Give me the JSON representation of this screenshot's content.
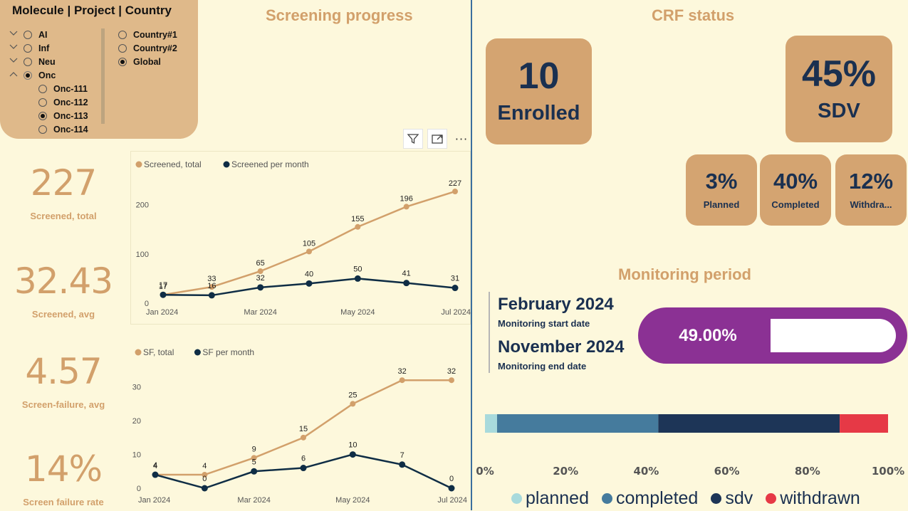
{
  "slicer": {
    "title": "Molecule | Project | Country",
    "tree": [
      {
        "label": "AI",
        "chevron": "down",
        "selected": false,
        "level": 0
      },
      {
        "label": "Inf",
        "chevron": "down",
        "selected": false,
        "level": 0
      },
      {
        "label": "Neu",
        "chevron": "down",
        "selected": false,
        "level": 0
      },
      {
        "label": "Onc",
        "chevron": "up",
        "selected": "partial",
        "level": 0
      },
      {
        "label": "Onc-111",
        "selected": false,
        "level": 1
      },
      {
        "label": "Onc-112",
        "selected": false,
        "level": 1
      },
      {
        "label": "Onc-113",
        "selected": true,
        "level": 1
      },
      {
        "label": "Onc-114",
        "selected": false,
        "level": 1
      }
    ],
    "countries": [
      {
        "label": "Country#1",
        "selected": false
      },
      {
        "label": "Country#2",
        "selected": false
      },
      {
        "label": "Global",
        "selected": true
      }
    ]
  },
  "headings": {
    "screening": "Screening progress",
    "crf": "CRF status",
    "monitoring": "Monitoring period"
  },
  "kpis": [
    {
      "value": "227",
      "label": "Screened, total"
    },
    {
      "value": "32.43",
      "label": "Screened, avg"
    },
    {
      "value": "4.57",
      "label": "Screen-failure, avg"
    },
    {
      "value": "14%",
      "label": "Screen failure rate"
    }
  ],
  "toolbar": {
    "filter": "filter-icon",
    "focus": "focus-mode-icon",
    "more": "more-options-icon"
  },
  "chart_data": [
    {
      "type": "line",
      "x": [
        "Jan 2024",
        "Feb 2024",
        "Mar 2024",
        "Apr 2024",
        "May 2024",
        "Jun 2024",
        "Jul 2024"
      ],
      "x_tick_labels": [
        "Jan 2024",
        "Mar 2024",
        "May 2024",
        "Jul 2024"
      ],
      "series": [
        {
          "name": "Screened, total",
          "values": [
            17,
            33,
            65,
            105,
            155,
            196,
            227
          ],
          "color": "#d2a06b"
        },
        {
          "name": "Screened per month",
          "values": [
            17,
            16,
            32,
            40,
            50,
            41,
            31
          ],
          "color": "#0f2d45"
        }
      ],
      "ylim": [
        0,
        240
      ],
      "yticks": [
        0,
        100,
        200
      ],
      "legend": "top-left",
      "grid": false
    },
    {
      "type": "line",
      "x": [
        "Jan 2024",
        "Feb 2024",
        "Mar 2024",
        "Apr 2024",
        "May 2024",
        "Jun 2024",
        "Jul 2024"
      ],
      "x_tick_labels": [
        "Jan 2024",
        "Mar 2024",
        "May 2024",
        "Jul 2024"
      ],
      "series": [
        {
          "name": "SF, total",
          "values": [
            4,
            4,
            9,
            15,
            25,
            32,
            32
          ],
          "color": "#d2a06b"
        },
        {
          "name": "SF per month",
          "values": [
            4,
            0,
            5,
            6,
            10,
            7,
            0
          ],
          "color": "#0f2d45"
        }
      ],
      "ylim": [
        0,
        35
      ],
      "yticks": [
        0,
        10,
        20,
        30
      ],
      "legend": "top-left",
      "grid": false
    },
    {
      "type": "bar",
      "orientation": "horizontal-stacked",
      "series": [
        {
          "name": "planned",
          "values": [
            3
          ],
          "color": "#a8dadc"
        },
        {
          "name": "completed",
          "values": [
            40
          ],
          "color": "#457b9d"
        },
        {
          "name": "sdv",
          "values": [
            45
          ],
          "color": "#1d3557"
        },
        {
          "name": "withdrawn",
          "values": [
            12
          ],
          "color": "#e63946"
        }
      ],
      "xlim": [
        0,
        100
      ],
      "xtick_labels": [
        "0%",
        "20%",
        "40%",
        "60%",
        "80%",
        "100%"
      ],
      "legend": "bottom"
    }
  ],
  "crf": {
    "enrolled": {
      "value": "10",
      "label": "Enrolled"
    },
    "sdv": {
      "value": "45%",
      "label": "SDV"
    },
    "planned": {
      "value": "3%",
      "label": "Planned"
    },
    "completed": {
      "value": "40%",
      "label": "Completed"
    },
    "withdrawn": {
      "value": "12%",
      "label": "Withdra..."
    }
  },
  "monitoring": {
    "start_date": "February 2024",
    "start_label": "Monitoring start date",
    "end_date": "November 2024",
    "end_label": "Monitoring end date",
    "progress_text": "49.00%",
    "progress_fraction": 0.49
  }
}
